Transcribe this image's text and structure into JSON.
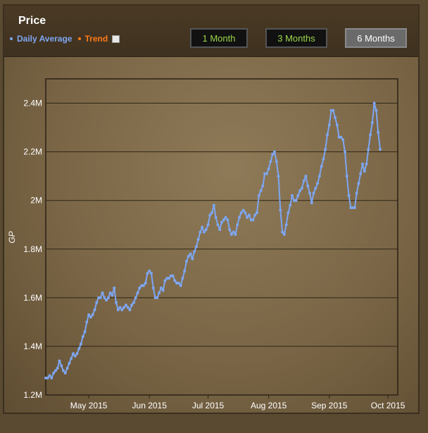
{
  "header": {
    "title": "Price",
    "legend": [
      {
        "label": "Daily Average",
        "color": "#7ea6f2"
      },
      {
        "label": "Trend",
        "color": "#ff7a1a"
      }
    ],
    "buttons": [
      {
        "label": "1 Month",
        "active": false
      },
      {
        "label": "3 Months",
        "active": false
      },
      {
        "label": "6 Months",
        "active": true
      }
    ]
  },
  "chart_data": {
    "type": "line",
    "ylabel": "GP",
    "y_ticks": [
      "1.2M",
      "1.4M",
      "1.6M",
      "1.8M",
      "2M",
      "2.2M",
      "2.4M"
    ],
    "ylim": [
      1.2,
      2.5
    ],
    "y_unit": "millions of GP",
    "x_ticks": [
      {
        "label": "May 2015",
        "date": "2015-05-01"
      },
      {
        "label": "Jun 2015",
        "date": "2015-06-01"
      },
      {
        "label": "Jul 2015",
        "date": "2015-07-01"
      },
      {
        "label": "Aug 2015",
        "date": "2015-08-01"
      },
      {
        "label": "Sep 2015",
        "date": "2015-09-01"
      },
      {
        "label": "Oct 2015",
        "date": "2015-10-01"
      }
    ],
    "xlim": [
      "2015-04-09",
      "2015-10-06"
    ],
    "grid": true,
    "series": [
      {
        "name": "Daily Average",
        "color": "#7ea6f2",
        "points": [
          [
            "2015-04-09",
            1.27
          ],
          [
            "2015-04-10",
            1.27
          ],
          [
            "2015-04-11",
            1.28
          ],
          [
            "2015-04-12",
            1.27
          ],
          [
            "2015-04-13",
            1.29
          ],
          [
            "2015-04-14",
            1.3
          ],
          [
            "2015-04-15",
            1.31
          ],
          [
            "2015-04-16",
            1.34
          ],
          [
            "2015-04-17",
            1.32
          ],
          [
            "2015-04-18",
            1.3
          ],
          [
            "2015-04-19",
            1.29
          ],
          [
            "2015-04-20",
            1.31
          ],
          [
            "2015-04-21",
            1.33
          ],
          [
            "2015-04-22",
            1.35
          ],
          [
            "2015-04-23",
            1.37
          ],
          [
            "2015-04-24",
            1.36
          ],
          [
            "2015-04-25",
            1.37
          ],
          [
            "2015-04-26",
            1.39
          ],
          [
            "2015-04-27",
            1.41
          ],
          [
            "2015-04-28",
            1.44
          ],
          [
            "2015-04-29",
            1.46
          ],
          [
            "2015-04-30",
            1.5
          ],
          [
            "2015-05-01",
            1.53
          ],
          [
            "2015-05-02",
            1.52
          ],
          [
            "2015-05-03",
            1.53
          ],
          [
            "2015-05-04",
            1.55
          ],
          [
            "2015-05-05",
            1.58
          ],
          [
            "2015-05-06",
            1.6
          ],
          [
            "2015-05-07",
            1.6
          ],
          [
            "2015-05-08",
            1.62
          ],
          [
            "2015-05-09",
            1.6
          ],
          [
            "2015-05-10",
            1.59
          ],
          [
            "2015-05-11",
            1.6
          ],
          [
            "2015-05-12",
            1.62
          ],
          [
            "2015-05-13",
            1.61
          ],
          [
            "2015-05-14",
            1.64
          ],
          [
            "2015-05-15",
            1.58
          ],
          [
            "2015-05-16",
            1.55
          ],
          [
            "2015-05-17",
            1.56
          ],
          [
            "2015-05-18",
            1.55
          ],
          [
            "2015-05-19",
            1.56
          ],
          [
            "2015-05-20",
            1.57
          ],
          [
            "2015-05-21",
            1.56
          ],
          [
            "2015-05-22",
            1.55
          ],
          [
            "2015-05-23",
            1.57
          ],
          [
            "2015-05-24",
            1.58
          ],
          [
            "2015-05-25",
            1.6
          ],
          [
            "2015-05-26",
            1.62
          ],
          [
            "2015-05-27",
            1.64
          ],
          [
            "2015-05-28",
            1.65
          ],
          [
            "2015-05-29",
            1.65
          ],
          [
            "2015-05-30",
            1.66
          ],
          [
            "2015-05-31",
            1.7
          ],
          [
            "2015-06-01",
            1.71
          ],
          [
            "2015-06-02",
            1.7
          ],
          [
            "2015-06-03",
            1.64
          ],
          [
            "2015-06-04",
            1.6
          ],
          [
            "2015-06-05",
            1.6
          ],
          [
            "2015-06-06",
            1.62
          ],
          [
            "2015-06-07",
            1.64
          ],
          [
            "2015-06-08",
            1.63
          ],
          [
            "2015-06-09",
            1.67
          ],
          [
            "2015-06-10",
            1.68
          ],
          [
            "2015-06-11",
            1.68
          ],
          [
            "2015-06-12",
            1.69
          ],
          [
            "2015-06-13",
            1.69
          ],
          [
            "2015-06-14",
            1.67
          ],
          [
            "2015-06-15",
            1.66
          ],
          [
            "2015-06-16",
            1.66
          ],
          [
            "2015-06-17",
            1.65
          ],
          [
            "2015-06-18",
            1.68
          ],
          [
            "2015-06-19",
            1.71
          ],
          [
            "2015-06-20",
            1.75
          ],
          [
            "2015-06-21",
            1.77
          ],
          [
            "2015-06-22",
            1.78
          ],
          [
            "2015-06-23",
            1.76
          ],
          [
            "2015-06-24",
            1.79
          ],
          [
            "2015-06-25",
            1.81
          ],
          [
            "2015-06-26",
            1.84
          ],
          [
            "2015-06-27",
            1.87
          ],
          [
            "2015-06-28",
            1.89
          ],
          [
            "2015-06-29",
            1.87
          ],
          [
            "2015-06-30",
            1.88
          ],
          [
            "2015-07-01",
            1.9
          ],
          [
            "2015-07-02",
            1.94
          ],
          [
            "2015-07-03",
            1.95
          ],
          [
            "2015-07-04",
            1.98
          ],
          [
            "2015-07-05",
            1.93
          ],
          [
            "2015-07-06",
            1.9
          ],
          [
            "2015-07-07",
            1.88
          ],
          [
            "2015-07-08",
            1.91
          ],
          [
            "2015-07-09",
            1.92
          ],
          [
            "2015-07-10",
            1.93
          ],
          [
            "2015-07-11",
            1.92
          ],
          [
            "2015-07-12",
            1.88
          ],
          [
            "2015-07-13",
            1.86
          ],
          [
            "2015-07-14",
            1.87
          ],
          [
            "2015-07-15",
            1.86
          ],
          [
            "2015-07-16",
            1.9
          ],
          [
            "2015-07-17",
            1.93
          ],
          [
            "2015-07-18",
            1.95
          ],
          [
            "2015-07-19",
            1.96
          ],
          [
            "2015-07-20",
            1.95
          ],
          [
            "2015-07-21",
            1.93
          ],
          [
            "2015-07-22",
            1.94
          ],
          [
            "2015-07-23",
            1.92
          ],
          [
            "2015-07-24",
            1.92
          ],
          [
            "2015-07-25",
            1.94
          ],
          [
            "2015-07-26",
            1.95
          ],
          [
            "2015-07-27",
            2.02
          ],
          [
            "2015-07-28",
            2.04
          ],
          [
            "2015-07-29",
            2.06
          ],
          [
            "2015-07-30",
            2.11
          ],
          [
            "2015-07-31",
            2.11
          ],
          [
            "2015-08-01",
            2.13
          ],
          [
            "2015-08-02",
            2.16
          ],
          [
            "2015-08-03",
            2.19
          ],
          [
            "2015-08-04",
            2.2
          ],
          [
            "2015-08-05",
            2.16
          ],
          [
            "2015-08-06",
            2.1
          ],
          [
            "2015-08-07",
            1.96
          ],
          [
            "2015-08-08",
            1.87
          ],
          [
            "2015-08-09",
            1.86
          ],
          [
            "2015-08-10",
            1.9
          ],
          [
            "2015-08-11",
            1.95
          ],
          [
            "2015-08-12",
            1.98
          ],
          [
            "2015-08-13",
            2.02
          ],
          [
            "2015-08-14",
            2.0
          ],
          [
            "2015-08-15",
            2.0
          ],
          [
            "2015-08-16",
            2.02
          ],
          [
            "2015-08-17",
            2.04
          ],
          [
            "2015-08-18",
            2.05
          ],
          [
            "2015-08-19",
            2.08
          ],
          [
            "2015-08-20",
            2.1
          ],
          [
            "2015-08-21",
            2.06
          ],
          [
            "2015-08-22",
            2.03
          ],
          [
            "2015-08-23",
            1.99
          ],
          [
            "2015-08-24",
            2.03
          ],
          [
            "2015-08-25",
            2.05
          ],
          [
            "2015-08-26",
            2.07
          ],
          [
            "2015-08-27",
            2.1
          ],
          [
            "2015-08-28",
            2.14
          ],
          [
            "2015-08-29",
            2.17
          ],
          [
            "2015-08-30",
            2.21
          ],
          [
            "2015-08-31",
            2.27
          ],
          [
            "2015-09-01",
            2.31
          ],
          [
            "2015-09-02",
            2.37
          ],
          [
            "2015-09-03",
            2.37
          ],
          [
            "2015-09-04",
            2.34
          ],
          [
            "2015-09-05",
            2.31
          ],
          [
            "2015-09-06",
            2.26
          ],
          [
            "2015-09-07",
            2.26
          ],
          [
            "2015-09-08",
            2.25
          ],
          [
            "2015-09-09",
            2.2
          ],
          [
            "2015-09-10",
            2.1
          ],
          [
            "2015-09-11",
            2.02
          ],
          [
            "2015-09-12",
            1.97
          ],
          [
            "2015-09-13",
            1.97
          ],
          [
            "2015-09-14",
            1.97
          ],
          [
            "2015-09-15",
            2.03
          ],
          [
            "2015-09-16",
            2.07
          ],
          [
            "2015-09-17",
            2.11
          ],
          [
            "2015-09-18",
            2.15
          ],
          [
            "2015-09-19",
            2.12
          ],
          [
            "2015-09-20",
            2.15
          ],
          [
            "2015-09-21",
            2.21
          ],
          [
            "2015-09-22",
            2.27
          ],
          [
            "2015-09-23",
            2.32
          ],
          [
            "2015-09-24",
            2.4
          ],
          [
            "2015-09-25",
            2.37
          ],
          [
            "2015-09-26",
            2.28
          ],
          [
            "2015-09-27",
            2.21
          ]
        ]
      }
    ]
  }
}
